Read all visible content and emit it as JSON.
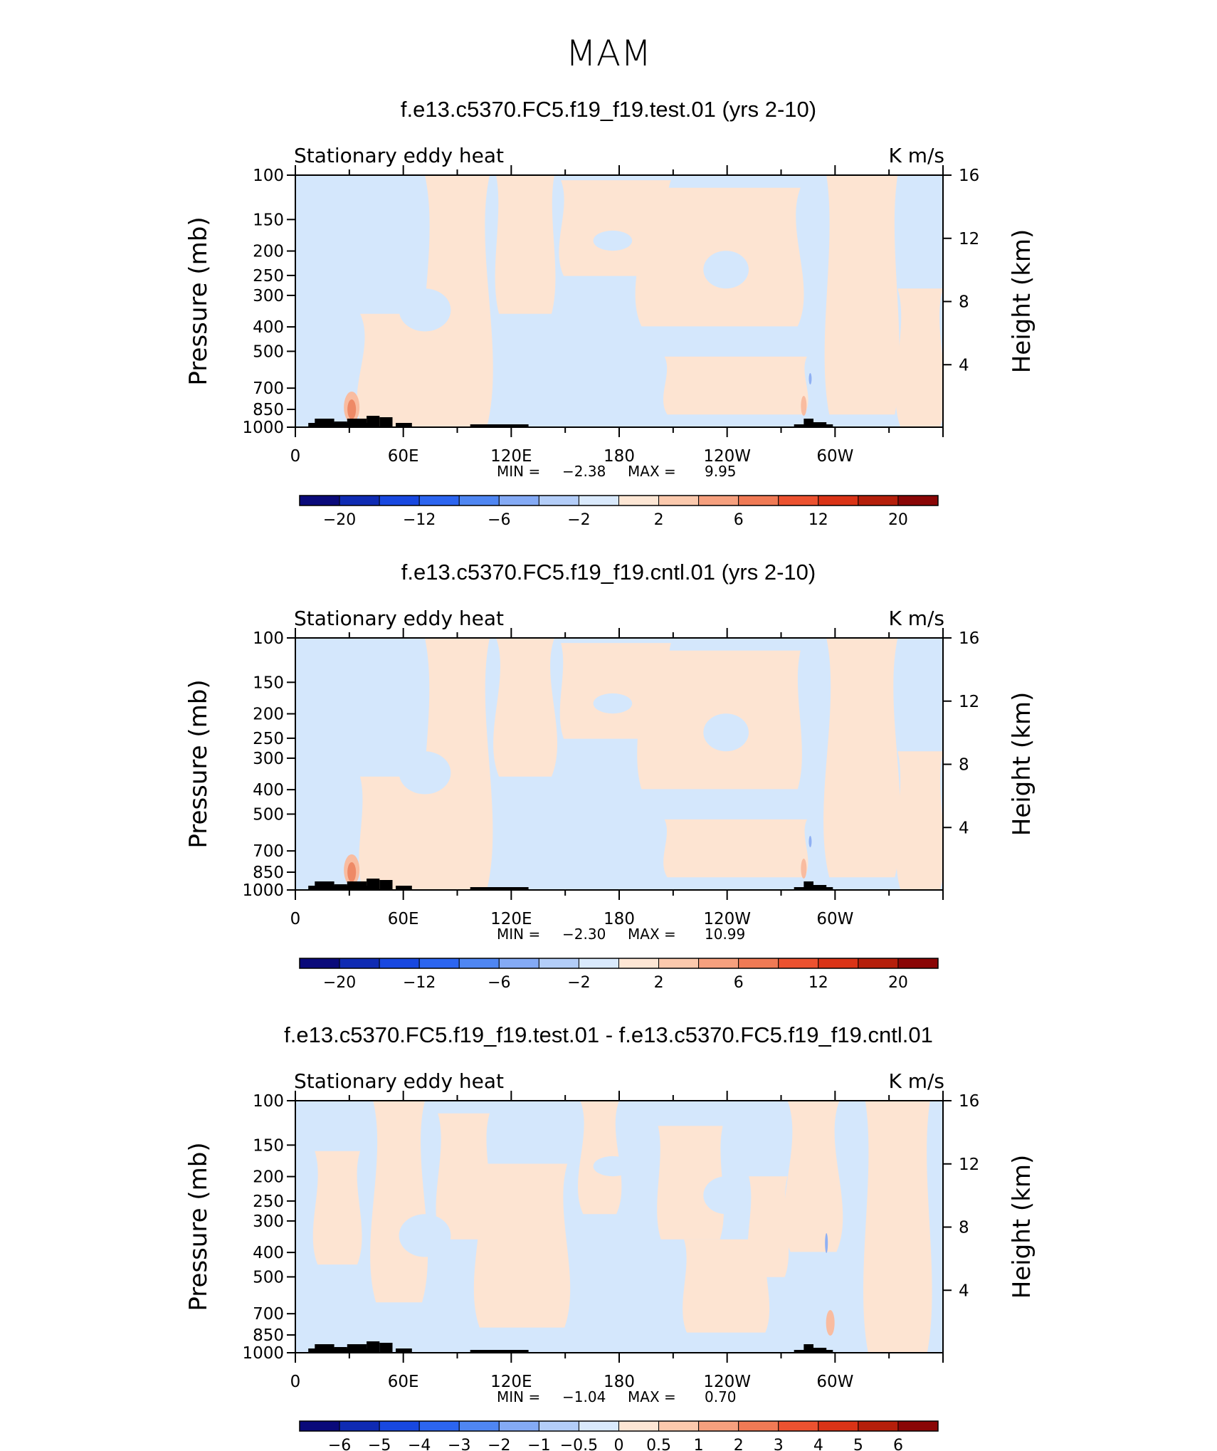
{
  "figure": {
    "title": "MAM"
  },
  "colors": {
    "neg_light": "#d4e7fc",
    "pos_light": "#fde4d2",
    "pos_mid": "#f9bca0",
    "pos_strong": "#ee8966",
    "neg_mid": "#8fb0f3",
    "topography": "#000000",
    "frame": "#000000"
  },
  "chart_data": [
    {
      "type": "heatmap",
      "title": "f.e13.c5370.FC5.f19_f19.test.01 (yrs 2-10)",
      "left_label": "Stationary eddy heat",
      "right_label": "K m/s",
      "ylabel": "Pressure (mb)",
      "ylabel_right": "Height (km)",
      "x_ticks": [
        "0",
        "60E",
        "120E",
        "180",
        "120W",
        "60W"
      ],
      "y_ticks": [
        "100",
        "150",
        "200",
        "250",
        "300",
        "400",
        "500",
        "700",
        "850",
        "1000"
      ],
      "y_ticks_right": [
        "16",
        "12",
        "8",
        "4"
      ],
      "stats": {
        "min_label": "MIN =",
        "min": "−2.38",
        "max_label": "MAX =",
        "max": "9.95"
      },
      "colorbar_labels": [
        "−20",
        "−12",
        "−6",
        "−2",
        "2",
        "6",
        "12",
        "20"
      ],
      "colorbar_colors": [
        "#0a0a7a",
        "#0f2bb3",
        "#1848e0",
        "#2c65f0",
        "#4f86f2",
        "#84aaf5",
        "#b3cdf8",
        "#d9e9fc",
        "#fde6d4",
        "#fbc9ad",
        "#f6a07e",
        "#f07a55",
        "#ec5230",
        "#da3417",
        "#b51f0b",
        "#8a0606"
      ],
      "field_min": -2.38,
      "field_max": 9.95
    },
    {
      "type": "heatmap",
      "title": "f.e13.c5370.FC5.f19_f19.cntl.01 (yrs 2-10)",
      "left_label": "Stationary eddy heat",
      "right_label": "K m/s",
      "ylabel": "Pressure (mb)",
      "ylabel_right": "Height (km)",
      "x_ticks": [
        "0",
        "60E",
        "120E",
        "180",
        "120W",
        "60W"
      ],
      "y_ticks": [
        "100",
        "150",
        "200",
        "250",
        "300",
        "400",
        "500",
        "700",
        "850",
        "1000"
      ],
      "y_ticks_right": [
        "16",
        "12",
        "8",
        "4"
      ],
      "stats": {
        "min_label": "MIN =",
        "min": "−2.30",
        "max_label": "MAX =",
        "max": "10.99"
      },
      "colorbar_labels": [
        "−20",
        "−12",
        "−6",
        "−2",
        "2",
        "6",
        "12",
        "20"
      ],
      "colorbar_colors": [
        "#0a0a7a",
        "#0f2bb3",
        "#1848e0",
        "#2c65f0",
        "#4f86f2",
        "#84aaf5",
        "#b3cdf8",
        "#d9e9fc",
        "#fde6d4",
        "#fbc9ad",
        "#f6a07e",
        "#f07a55",
        "#ec5230",
        "#da3417",
        "#b51f0b",
        "#8a0606"
      ],
      "field_min": -2.3,
      "field_max": 10.99
    },
    {
      "type": "heatmap",
      "title": "f.e13.c5370.FC5.f19_f19.test.01 - f.e13.c5370.FC5.f19_f19.cntl.01",
      "left_label": "Stationary eddy heat",
      "right_label": "K m/s",
      "ylabel": "Pressure (mb)",
      "ylabel_right": "Height (km)",
      "x_ticks": [
        "0",
        "60E",
        "120E",
        "180",
        "120W",
        "60W"
      ],
      "y_ticks": [
        "100",
        "150",
        "200",
        "250",
        "300",
        "400",
        "500",
        "700",
        "850",
        "1000"
      ],
      "y_ticks_right": [
        "16",
        "12",
        "8",
        "4"
      ],
      "stats": {
        "min_label": "MIN =",
        "min": "−1.04",
        "max_label": "MAX =",
        "max": "0.70"
      },
      "colorbar_labels": [
        "−6",
        "−5",
        "−4",
        "−3",
        "−2",
        "−1",
        "−0.5",
        "0",
        "0.5",
        "1",
        "2",
        "3",
        "4",
        "5",
        "6"
      ],
      "colorbar_colors": [
        "#0a0a7a",
        "#0f2bb3",
        "#1848e0",
        "#2c65f0",
        "#4f86f2",
        "#84aaf5",
        "#b3cdf8",
        "#d9e9fc",
        "#fde6d4",
        "#fbc9ad",
        "#f6a07e",
        "#f07a55",
        "#ec5230",
        "#da3417",
        "#b51f0b",
        "#8a0606"
      ],
      "field_min": -1.04,
      "field_max": 0.7
    }
  ]
}
